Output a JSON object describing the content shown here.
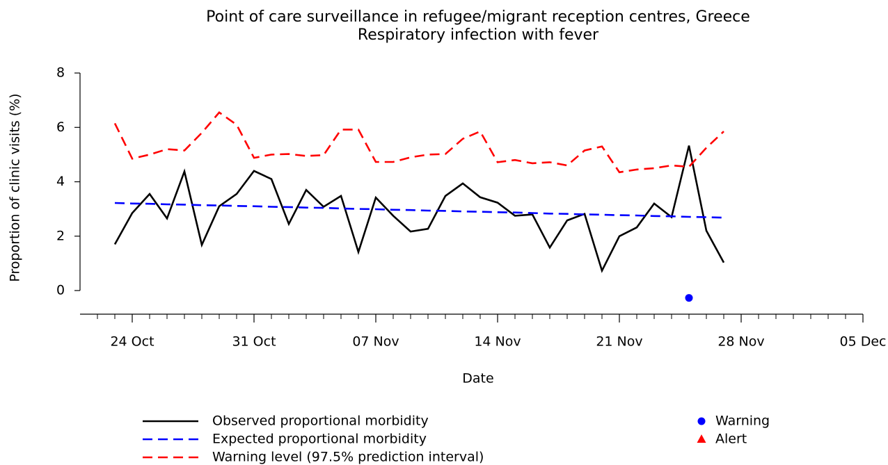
{
  "chart_data": {
    "type": "line",
    "title": "Point of care surveillance in refugee/migrant reception centres, Greece",
    "subtitle": "Respiratory infection with fever",
    "subtitle_color": "#0000ff",
    "x_label": "Date",
    "y_label": "Proportion of clinic visits (%)",
    "x": [
      "23 Oct",
      "24 Oct",
      "25 Oct",
      "26 Oct",
      "27 Oct",
      "28 Oct",
      "29 Oct",
      "30 Oct",
      "31 Oct",
      "01 Nov",
      "02 Nov",
      "03 Nov",
      "04 Nov",
      "05 Nov",
      "06 Nov",
      "07 Nov",
      "08 Nov",
      "09 Nov",
      "10 Nov",
      "11 Nov",
      "12 Nov",
      "13 Nov",
      "14 Nov",
      "15 Nov",
      "16 Nov",
      "17 Nov",
      "18 Nov",
      "19 Nov",
      "20 Nov",
      "21 Nov",
      "22 Nov",
      "23 Nov",
      "24 Nov",
      "25 Nov",
      "26 Nov",
      "27 Nov"
    ],
    "xlim": [
      "21 Oct",
      "05 Dec"
    ],
    "xticks": [
      "24 Oct",
      "31 Oct",
      "07 Nov",
      "14 Nov",
      "21 Nov",
      "28 Nov",
      "05 Dec"
    ],
    "ylim": [
      -0.8,
      8.3
    ],
    "yticks": [
      0,
      2,
      4,
      6,
      8
    ],
    "series": [
      {
        "name": "Observed proportional morbidity",
        "color": "#000000",
        "dash": "solid",
        "values": [
          1.7,
          2.85,
          3.55,
          2.65,
          4.38,
          1.68,
          3.1,
          3.55,
          4.4,
          4.1,
          2.45,
          3.7,
          3.08,
          3.48,
          1.42,
          3.42,
          2.75,
          2.17,
          2.27,
          3.48,
          3.94,
          3.43,
          3.23,
          2.75,
          2.8,
          1.58,
          2.58,
          2.82,
          0.73,
          2.0,
          2.32,
          3.2,
          2.7,
          5.33,
          2.2,
          1.03
        ]
      },
      {
        "name": "Expected proportional morbidity",
        "color": "#0000ff",
        "dash": "dashed",
        "values": [
          3.22,
          3.2,
          3.19,
          3.17,
          3.16,
          3.14,
          3.13,
          3.11,
          3.1,
          3.08,
          3.07,
          3.05,
          3.04,
          3.02,
          3.0,
          2.99,
          2.97,
          2.96,
          2.94,
          2.93,
          2.91,
          2.9,
          2.88,
          2.87,
          2.85,
          2.83,
          2.82,
          2.8,
          2.79,
          2.77,
          2.76,
          2.74,
          2.73,
          2.71,
          2.7,
          2.68
        ]
      },
      {
        "name": "Warning level (97.5% prediction interval)",
        "color": "#ff0000",
        "dash": "dashed",
        "values": [
          6.15,
          4.85,
          5.0,
          5.2,
          5.15,
          5.8,
          6.55,
          6.1,
          4.88,
          5.0,
          5.02,
          4.95,
          4.98,
          5.92,
          5.92,
          4.73,
          4.73,
          4.9,
          5.0,
          5.02,
          5.58,
          5.85,
          4.72,
          4.8,
          4.68,
          4.72,
          4.6,
          5.15,
          5.3,
          4.35,
          4.45,
          4.5,
          4.6,
          4.55,
          5.25,
          5.85
        ]
      }
    ],
    "points": [
      {
        "name": "Warning",
        "color": "#0000ff",
        "marker": "circle",
        "x": [
          "25 Nov"
        ],
        "values": [
          -0.27
        ]
      },
      {
        "name": "Alert",
        "color": "#ff0000",
        "marker": "triangle",
        "x": [],
        "values": []
      }
    ]
  }
}
